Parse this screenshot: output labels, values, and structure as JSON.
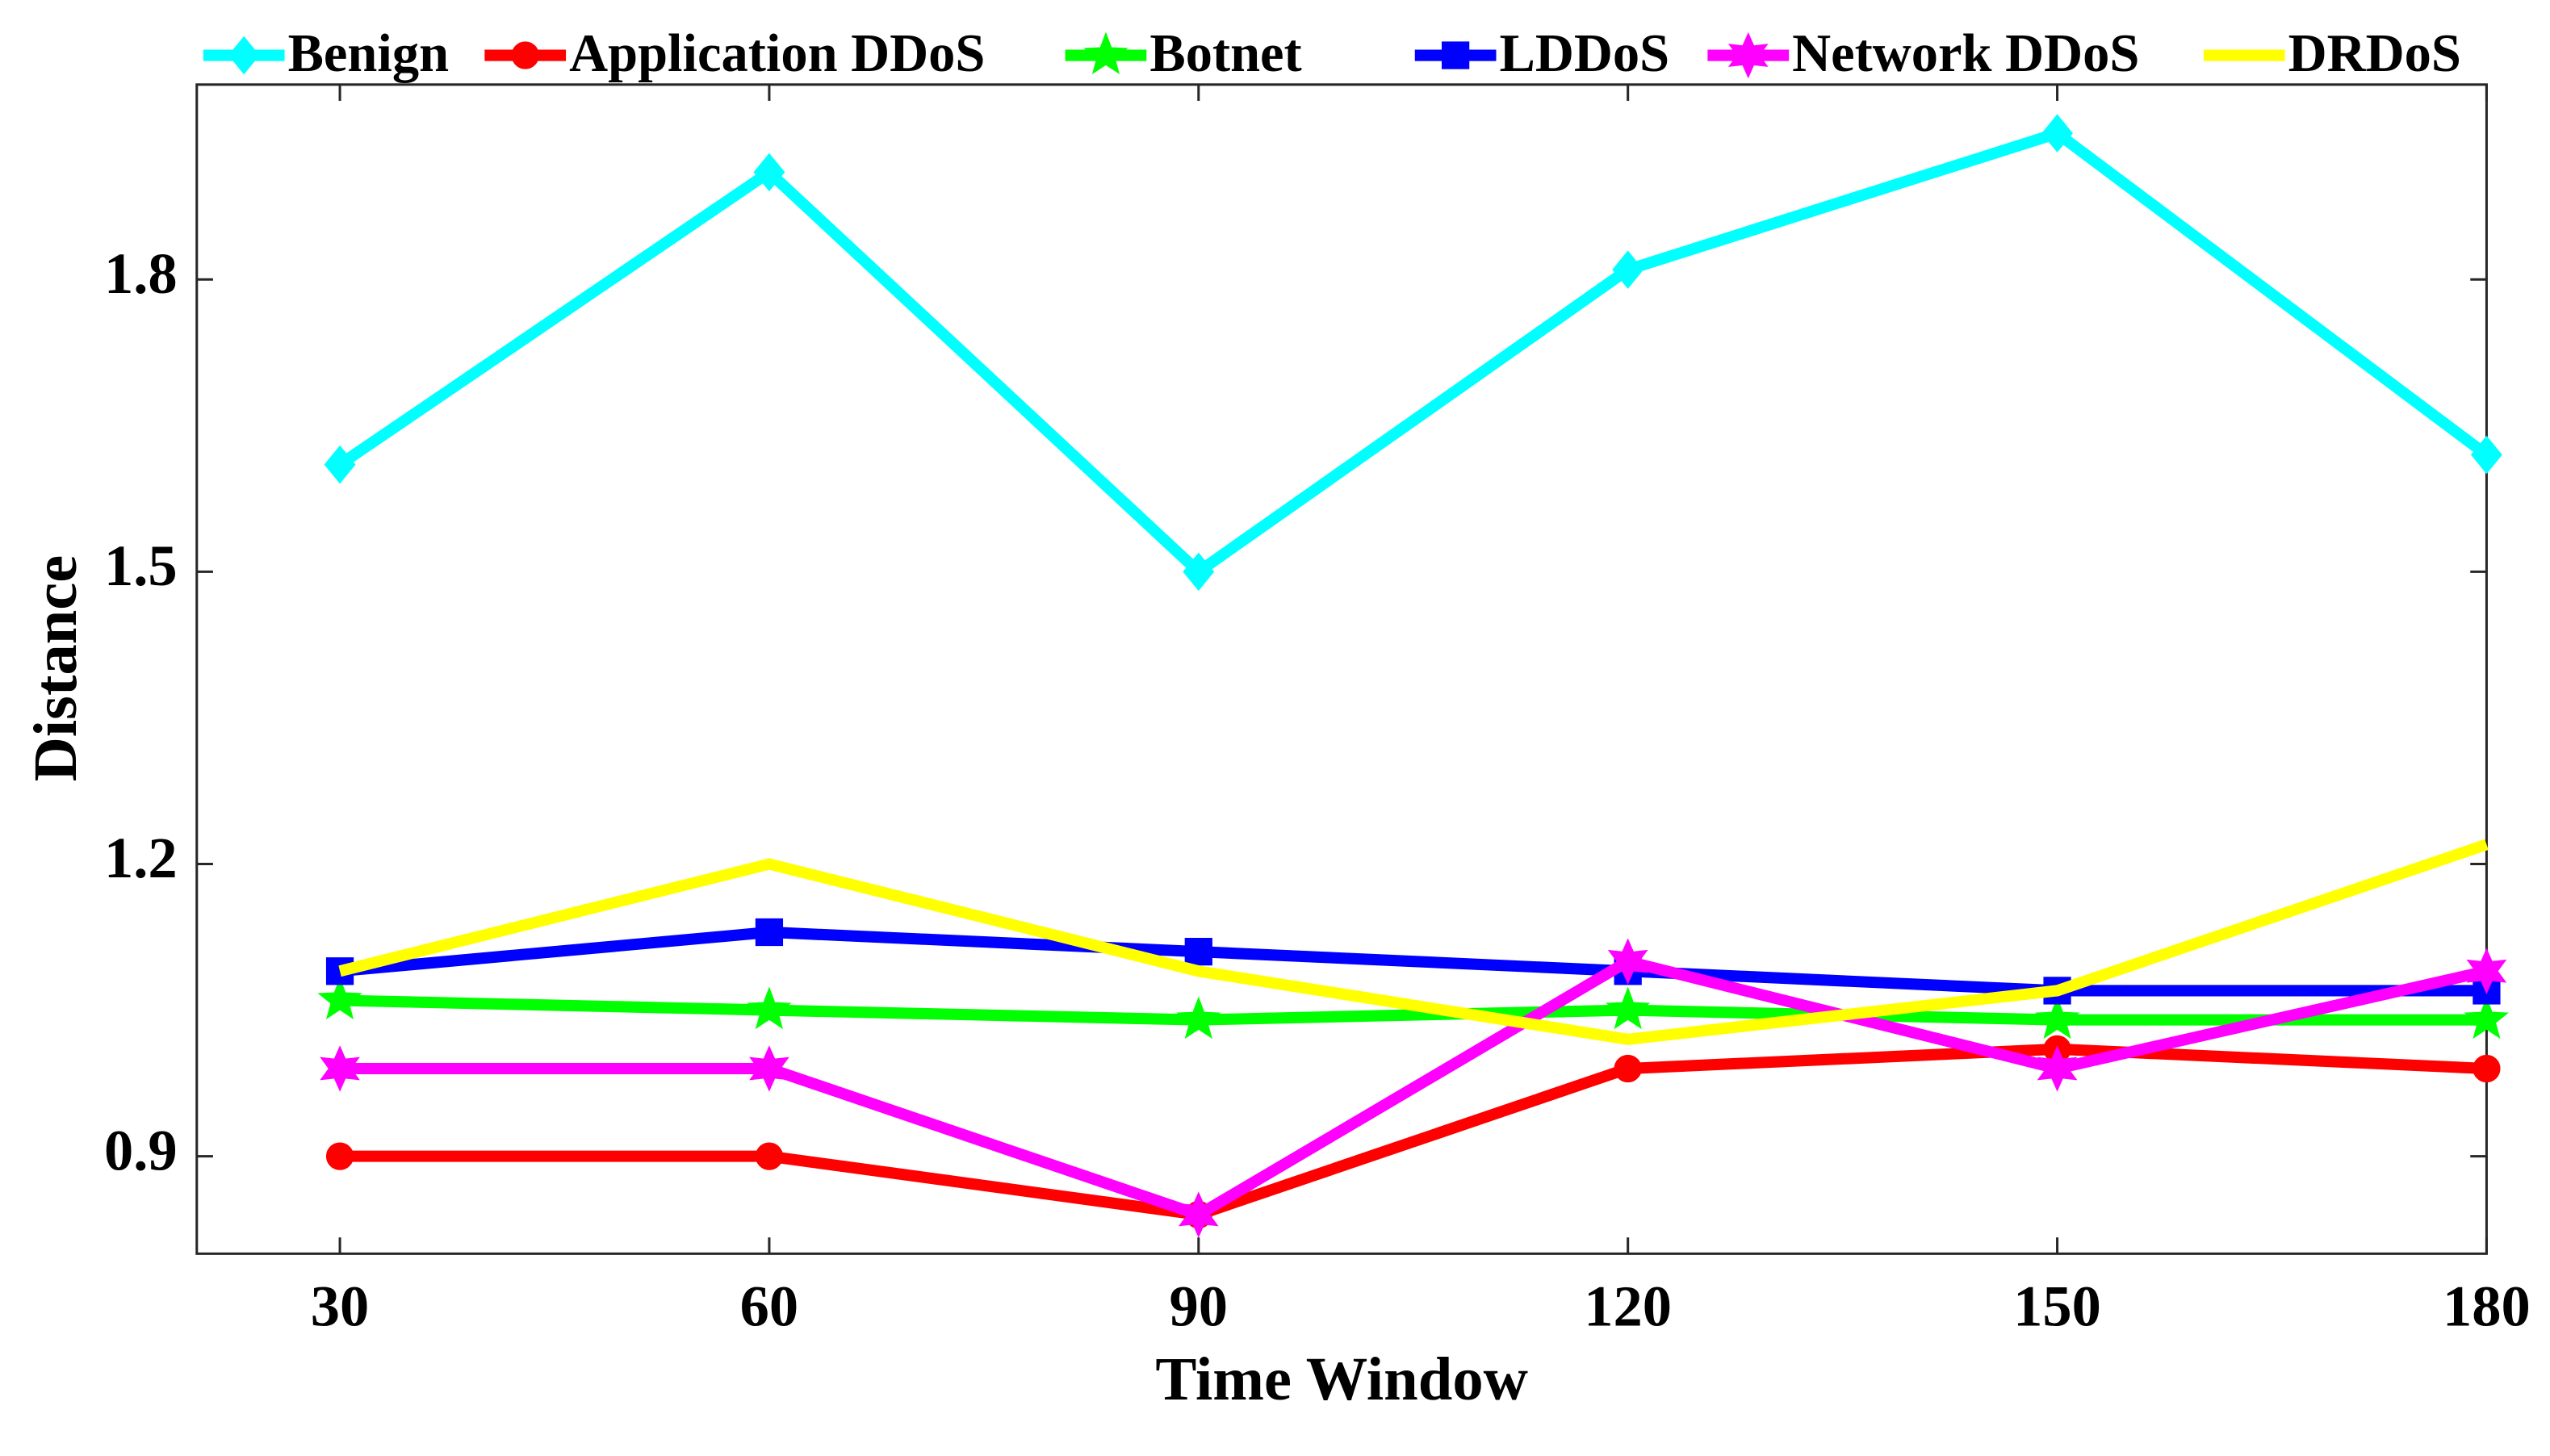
{
  "chart_data": {
    "type": "line",
    "x_label": "Time Window",
    "y_label": "Distance",
    "x": [
      30,
      60,
      90,
      120,
      150,
      180
    ],
    "xlim": [
      20,
      180
    ],
    "xticks": [
      30,
      60,
      90,
      120,
      150,
      180
    ],
    "ylim": [
      0.8,
      2.0
    ],
    "yticks": [
      0.9,
      1.2,
      1.5,
      1.8
    ],
    "grid": false,
    "legend": "top",
    "series": [
      {
        "name": "Benign",
        "color": "#00ffff",
        "marker": "diamond",
        "values": [
          1.61,
          1.91,
          1.5,
          1.81,
          1.95,
          1.62
        ]
      },
      {
        "name": "Application DDoS",
        "color": "#ff0000",
        "marker": "circle",
        "values": [
          0.9,
          0.9,
          0.84,
          0.99,
          1.01,
          0.99
        ]
      },
      {
        "name": "Botnet",
        "color": "#00ff00",
        "marker": "star",
        "values": [
          1.06,
          1.05,
          1.04,
          1.05,
          1.04,
          1.04
        ]
      },
      {
        "name": "LDDoS",
        "color": "#0000ff",
        "marker": "square",
        "values": [
          1.09,
          1.13,
          1.11,
          1.09,
          1.07,
          1.07
        ]
      },
      {
        "name": "Network DDoS",
        "color": "#ff00ff",
        "marker": "hexagram",
        "values": [
          0.99,
          0.99,
          0.84,
          1.1,
          0.99,
          1.09
        ]
      },
      {
        "name": "DRDoS",
        "color": "#ffff00",
        "marker": "none",
        "values": [
          1.09,
          1.2,
          1.09,
          1.02,
          1.07,
          1.22
        ]
      }
    ]
  }
}
